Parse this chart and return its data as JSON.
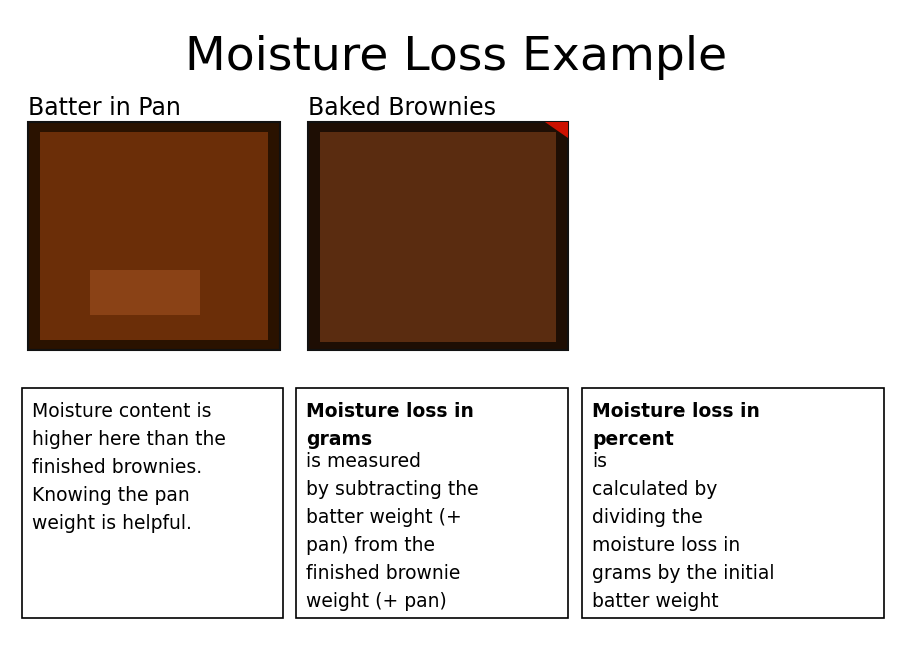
{
  "title": "Moisture Loss Example",
  "title_fontsize": 34,
  "label1": "Batter in Pan",
  "label2": "Baked Brownies",
  "label_fontsize": 17,
  "box1_lines": [
    [
      "Moisture content is ",
      "normal"
    ],
    [
      "higher here than the ",
      "normal"
    ],
    [
      "finished brownies.",
      "normal"
    ],
    [
      "Knowing the pan ",
      "normal"
    ],
    [
      "weight is helpful.",
      "normal"
    ]
  ],
  "box2_lines": [
    [
      "Moisture loss in",
      "bold"
    ],
    [
      "grams",
      "bold"
    ],
    [
      " is measured",
      "normal"
    ],
    [
      "by subtracting the",
      "normal"
    ],
    [
      "batter weight (+",
      "normal"
    ],
    [
      "pan) from the",
      "normal"
    ],
    [
      "finished brownie",
      "normal"
    ],
    [
      "weight (+ pan)",
      "normal"
    ]
  ],
  "box3_lines": [
    [
      "Moisture loss in",
      "bold"
    ],
    [
      "percent",
      "bold"
    ],
    [
      " is",
      "normal"
    ],
    [
      "calculated by",
      "normal"
    ],
    [
      "dividing the",
      "normal"
    ],
    [
      "moisture loss in",
      "normal"
    ],
    [
      "grams by the initial",
      "normal"
    ],
    [
      "batter weight",
      "normal"
    ]
  ],
  "background_color": "#ffffff",
  "text_color": "#000000",
  "box_edge_color": "#000000",
  "figw": 9.12,
  "figh": 6.72,
  "dpi": 100
}
